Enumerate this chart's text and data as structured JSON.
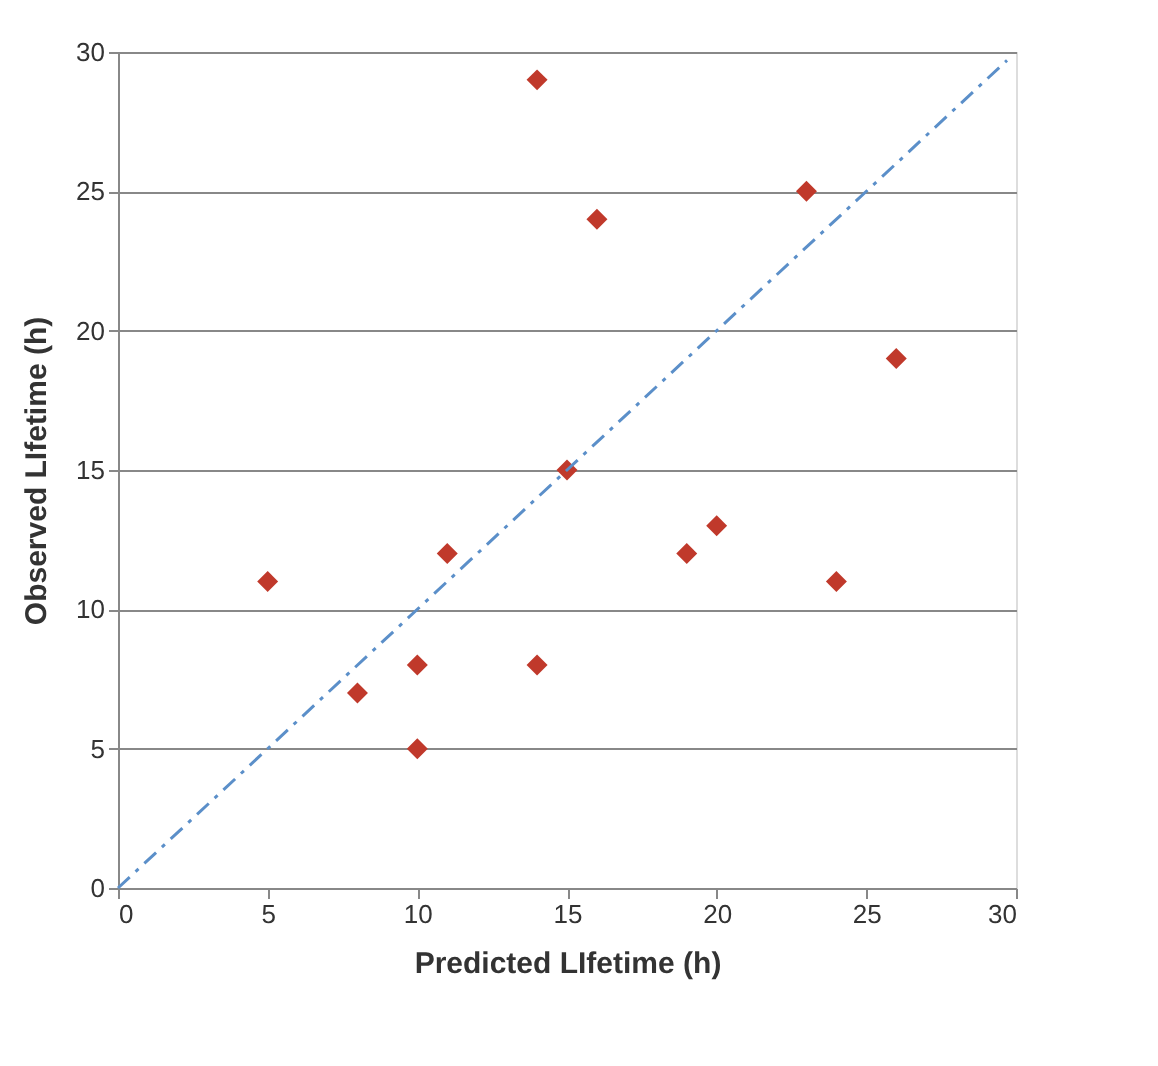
{
  "chart_data": {
    "type": "scatter",
    "xlabel": "Predicted LIfetime (h)",
    "ylabel": "Observed LIfetime (h)",
    "xlim": [
      0,
      30
    ],
    "ylim": [
      0,
      30
    ],
    "xticks": [
      0,
      5,
      10,
      15,
      20,
      25,
      30
    ],
    "yticks": [
      0,
      5,
      10,
      15,
      20,
      25,
      30
    ],
    "grid": "y",
    "series": [
      {
        "type": "scatter",
        "color": "#c0392b",
        "marker": "diamond",
        "x": [
          5,
          8,
          10,
          10,
          11,
          14,
          14,
          15,
          16,
          19,
          20,
          23,
          24,
          26
        ],
        "values": [
          11,
          7,
          8,
          5,
          12,
          29,
          8,
          15,
          24,
          12,
          13,
          25,
          11,
          19
        ]
      },
      {
        "type": "line",
        "color": "#5b8fc9",
        "line_style": "dashed",
        "x": [
          0,
          29.7
        ],
        "values": [
          0,
          29.7
        ]
      }
    ]
  }
}
